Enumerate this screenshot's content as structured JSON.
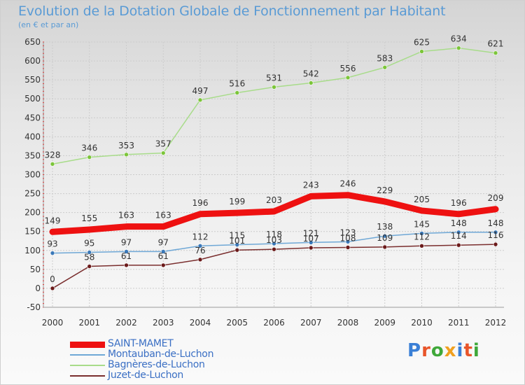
{
  "title": "Evolution de la Dotation Globale de Fonctionnement par Habitant",
  "subtitle": "(en € et par an)",
  "logo": "Proxiti",
  "colors": {
    "grid": "#cccccc",
    "axis_text": "#333333",
    "label_text": "#333333",
    "legend_text": "#3a6fc4",
    "title": "#5a9bd5"
  },
  "chart_data": {
    "type": "line",
    "title": "Evolution de la Dotation Globale de Fonctionnement par Habitant",
    "subtitle": "(en € et par an)",
    "xlabel": "",
    "ylabel": "",
    "x": [
      "2000",
      "2001",
      "2002",
      "2003",
      "2004",
      "2005",
      "2006",
      "2007",
      "2008",
      "2009",
      "2010",
      "2011",
      "2012"
    ],
    "ylim": [
      -50,
      650
    ],
    "yticks": [
      -50,
      0,
      50,
      100,
      150,
      200,
      250,
      300,
      350,
      400,
      450,
      500,
      550,
      600,
      650
    ],
    "ytick_labels": [
      "-50",
      "0",
      "50",
      "100",
      "150",
      "200",
      "250",
      "300",
      "350",
      "400",
      "450",
      "500",
      "550",
      "600",
      "650"
    ],
    "grid": true,
    "legend_position": "bottom-left",
    "series": [
      {
        "name": "SAINT-MAMET",
        "values": [
          149,
          155,
          163,
          163,
          196,
          199,
          203,
          243,
          246,
          229,
          205,
          196,
          209
        ],
        "color": "#ee1111",
        "marker": "#ee1111",
        "width": 9,
        "bold": true
      },
      {
        "name": "Montauban-de-Luchon",
        "values": [
          93,
          95,
          97,
          97,
          112,
          115,
          118,
          121,
          123,
          138,
          145,
          148,
          148
        ],
        "color": "#6fa8d6",
        "marker": "#3a78b8",
        "width": 1.5
      },
      {
        "name": "Bagnères-de-Luchon",
        "values": [
          328,
          346,
          353,
          357,
          497,
          516,
          531,
          542,
          556,
          583,
          625,
          634,
          621
        ],
        "color": "#a8dc8a",
        "marker": "#7cc53a",
        "width": 1.5
      },
      {
        "name": "Juzet-de-Luchon",
        "values": [
          0,
          58,
          61,
          61,
          76,
          101,
          103,
          107,
          108,
          109,
          112,
          114,
          116
        ],
        "color": "#7a2e2e",
        "marker": "#6b1a1a",
        "width": 1.5
      }
    ]
  }
}
